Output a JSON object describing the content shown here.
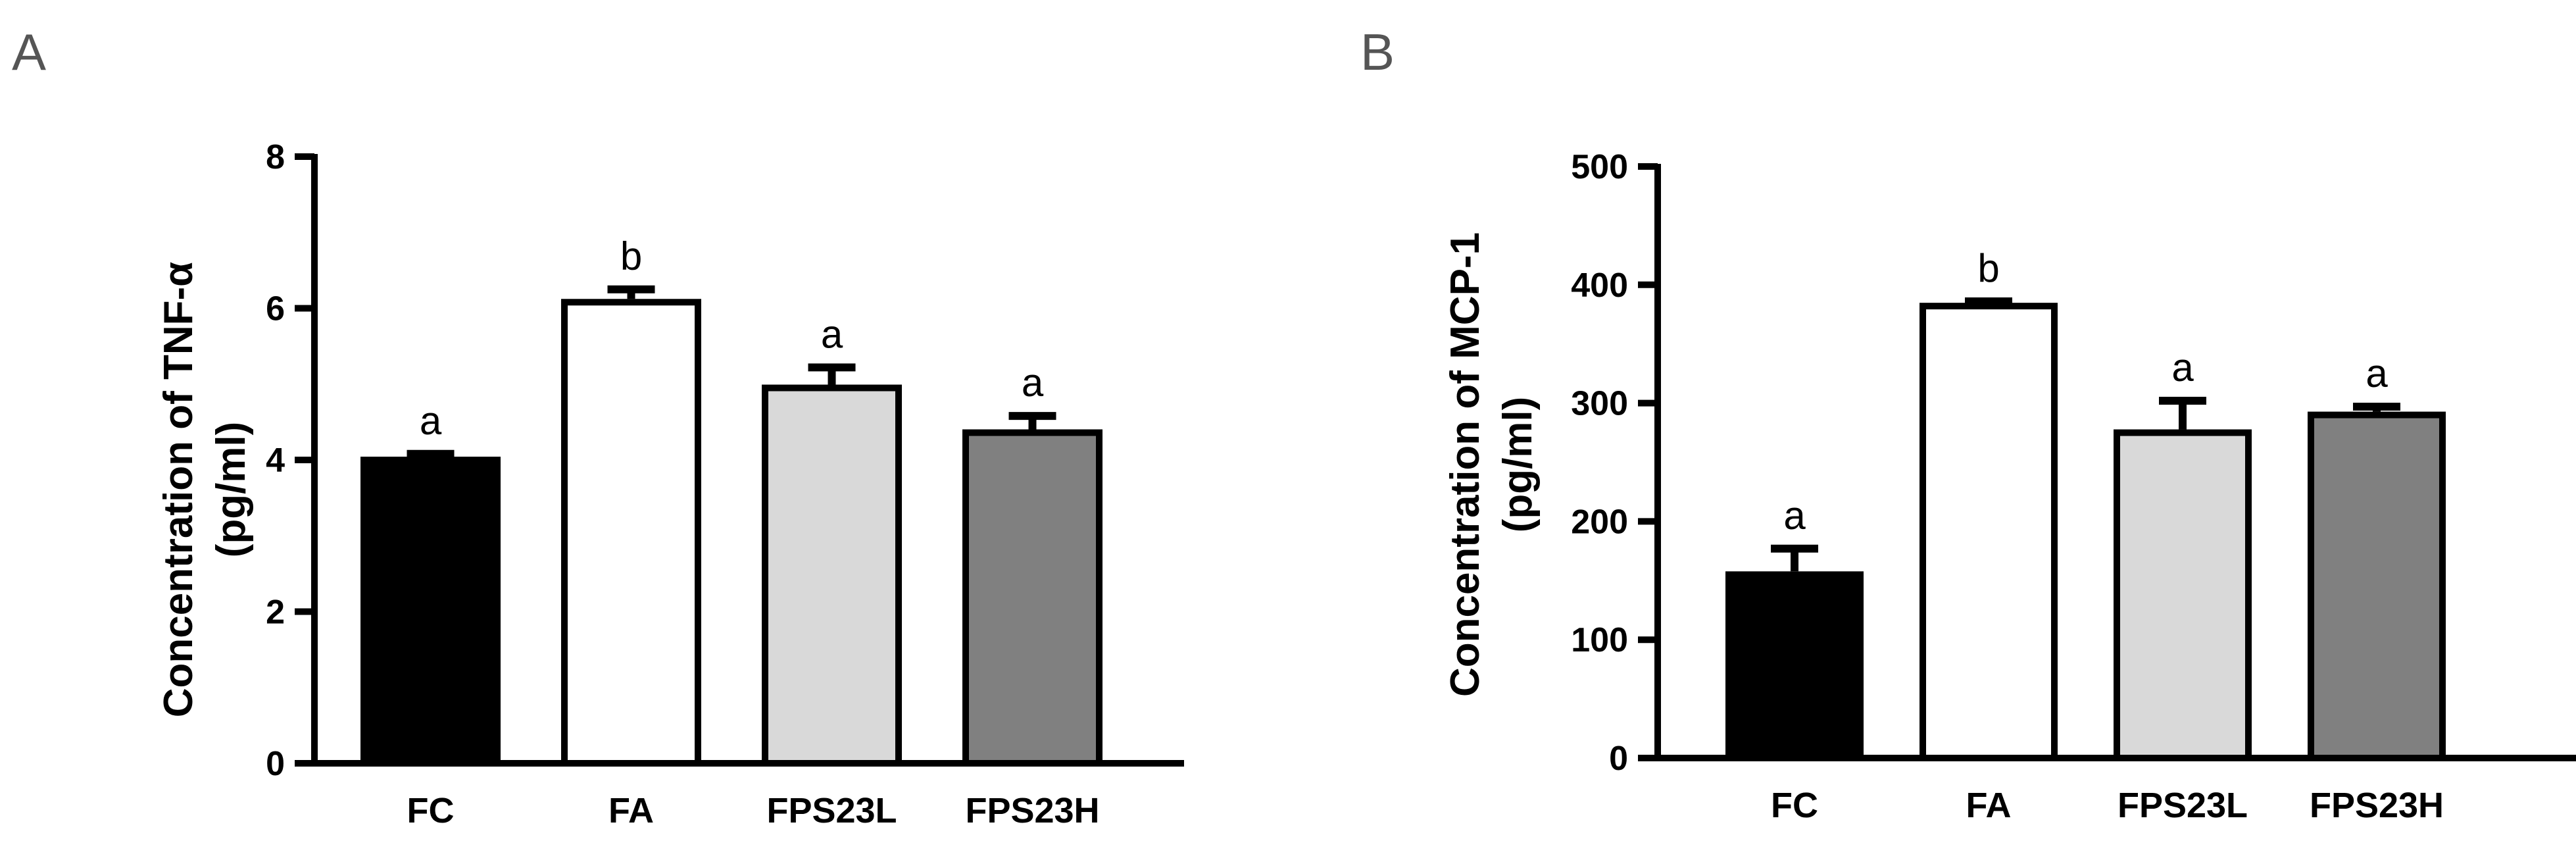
{
  "chart_data": [
    {
      "panel": "A",
      "type": "bar",
      "ylabel": [
        "Concentration of TNF-α",
        "(pg/ml)"
      ],
      "xlabel": "",
      "categories": [
        "FC",
        "FA",
        "FPS23L",
        "FPS23H"
      ],
      "values": [
        4.0,
        6.08,
        4.95,
        4.36
      ],
      "errors": [
        0.08,
        0.17,
        0.27,
        0.22
      ],
      "significance": [
        "a",
        "b",
        "a",
        "a"
      ],
      "ylim": [
        0,
        8
      ],
      "yticks": [
        "0",
        "2",
        "4",
        "6",
        "8"
      ],
      "bar_colors": [
        "#000000",
        "#ffffff",
        "#d9d9d9",
        "#808080"
      ],
      "grid": false
    },
    {
      "panel": "B",
      "type": "bar",
      "ylabel": [
        "Concentration of MCP-1",
        "(pg/ml)"
      ],
      "xlabel": "",
      "categories": [
        "FC",
        "FA",
        "FPS23L",
        "FPS23H"
      ],
      "values": [
        155,
        382,
        275,
        290
      ],
      "errors": [
        22,
        4,
        27,
        7
      ],
      "significance": [
        "a",
        "b",
        "a",
        "a"
      ],
      "ylim": [
        0,
        500
      ],
      "yticks": [
        "0",
        "100",
        "200",
        "300",
        "400",
        "500"
      ],
      "bar_colors": [
        "#000000",
        "#ffffff",
        "#d9d9d9",
        "#808080"
      ],
      "grid": false
    }
  ]
}
